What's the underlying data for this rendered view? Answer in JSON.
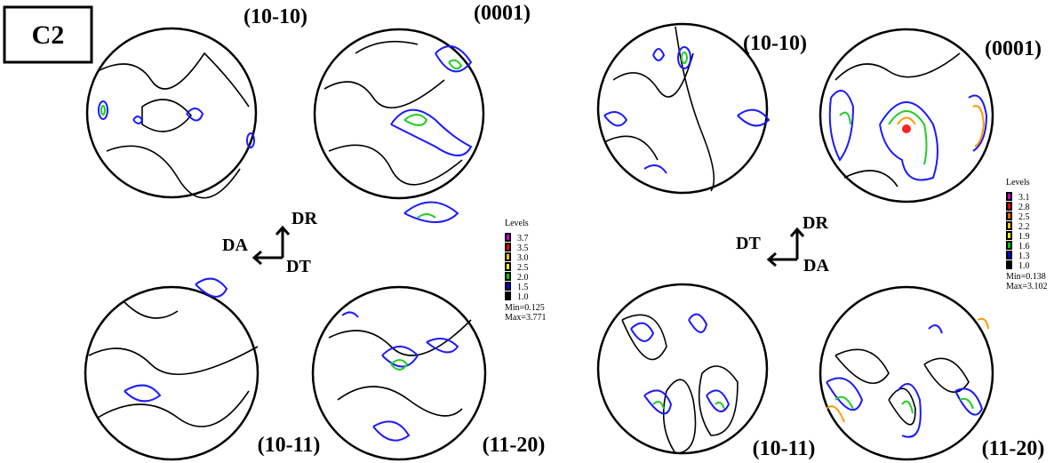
{
  "panel_label": "C2",
  "panels": [
    {
      "pole_figures": [
        {
          "label": "(10-10)"
        },
        {
          "label": "(0001)"
        },
        {
          "label": "(10-11)"
        },
        {
          "label": "(11-20)"
        }
      ],
      "axes": {
        "up": "DR",
        "left": "DA",
        "down": "DT"
      },
      "legend": {
        "title": "Levels",
        "levels": [
          "3.7",
          "3.5",
          "3.0",
          "2.5",
          "2.0",
          "1.5",
          "1.0"
        ],
        "min": "Min=0.125",
        "max": "Max=3.771"
      }
    },
    {
      "pole_figures": [
        {
          "label": "(10-10)"
        },
        {
          "label": "(0001)"
        },
        {
          "label": "(10-11)"
        },
        {
          "label": "(11-20)"
        }
      ],
      "axes": {
        "up": "DR",
        "left": "DT",
        "down": "DA"
      },
      "legend": {
        "title": "Levels",
        "levels": [
          "3.1",
          "2.8",
          "2.5",
          "2.2",
          "1.9",
          "1.6",
          "1.3",
          "1.0"
        ],
        "min": "Min=0.138",
        "max": "Max=3.102"
      }
    }
  ]
}
